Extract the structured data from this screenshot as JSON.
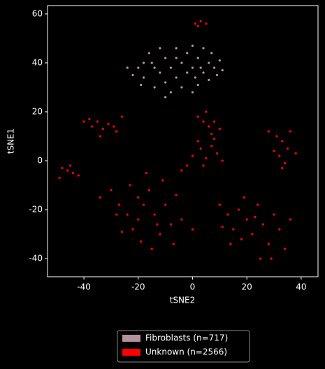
{
  "chart_data": {
    "type": "scatter",
    "xlabel": "tSNE2",
    "ylabel": "tSNE1",
    "xlim": [
      -53.4,
      46.2
    ],
    "ylim": [
      -47.4,
      63.4
    ],
    "xticks": [
      -40,
      -20,
      0,
      20,
      40
    ],
    "yticks": [
      -40,
      -20,
      0,
      20,
      40,
      60
    ],
    "legend": "lower center",
    "series": [
      {
        "name": "Fibroblasts (n=717)",
        "color": "#b4919f",
        "x": [
          -20,
          -18,
          -15,
          -12,
          -10,
          -8,
          -6,
          -4,
          -2,
          0,
          2,
          4,
          6,
          8,
          10,
          -16,
          -12,
          -6,
          0,
          4,
          -22,
          -19,
          -14,
          -10,
          -4,
          0,
          2,
          6,
          9,
          -8,
          -2,
          -14,
          -18,
          3,
          7,
          -10,
          -24,
          11,
          -6,
          1
        ],
        "y": [
          38,
          34,
          40,
          36,
          42,
          38,
          34,
          40,
          44,
          38,
          42,
          36,
          40,
          38,
          41,
          44,
          46,
          46,
          47,
          46,
          35,
          31,
          30,
          32,
          30,
          28,
          31,
          33,
          35,
          28,
          36,
          38,
          40,
          38,
          44,
          26,
          38,
          37,
          42,
          34
        ]
      },
      {
        "name": "Unknown (n=2566)",
        "color": "#ff0000",
        "x": [
          1,
          3,
          5,
          2,
          -40,
          -37,
          -35,
          -33,
          -31,
          -29,
          -28,
          -38,
          -34,
          -26,
          -48,
          -46,
          -44,
          -45,
          -42,
          -49,
          2,
          4,
          6,
          8,
          10,
          5,
          7,
          -2,
          0,
          3,
          5,
          7,
          9,
          11,
          4,
          8,
          -4,
          2,
          28,
          31,
          33,
          35,
          32,
          34,
          30,
          36,
          38,
          33,
          -34,
          -30,
          -27,
          -24,
          -22,
          -20,
          -18,
          -16,
          -14,
          -12,
          -10,
          -8,
          -6,
          -19,
          -23,
          -15,
          -11,
          -17,
          -26,
          -20,
          -13,
          -4,
          -7,
          0,
          -28,
          10,
          13,
          15,
          17,
          18,
          20,
          22,
          24,
          26,
          28,
          30,
          32,
          34,
          36,
          14,
          19,
          25,
          29,
          23,
          11
        ],
        "y": [
          56,
          57,
          56,
          55,
          16,
          14,
          16,
          13,
          15,
          14,
          12,
          17,
          10,
          18,
          -3,
          -4,
          -5,
          -2,
          -6,
          -7,
          18,
          16,
          14,
          16,
          13,
          20,
          11,
          -2,
          2,
          5,
          1,
          6,
          3,
          0,
          -2,
          9,
          -4,
          8,
          12,
          10,
          8,
          5,
          2,
          -1,
          4,
          12,
          3,
          -3,
          -15,
          -12,
          -18,
          -22,
          -28,
          -24,
          -18,
          -12,
          -22,
          -30,
          -18,
          -26,
          -14,
          -33,
          -10,
          -36,
          -8,
          -5,
          -29,
          -15,
          -26,
          -24,
          -34,
          -28,
          -22,
          -18,
          -22,
          -28,
          -20,
          -32,
          -24,
          -30,
          -18,
          -26,
          -34,
          -22,
          -28,
          -36,
          -24,
          -34,
          -15,
          -40,
          -40,
          -23,
          -27
        ]
      }
    ]
  }
}
